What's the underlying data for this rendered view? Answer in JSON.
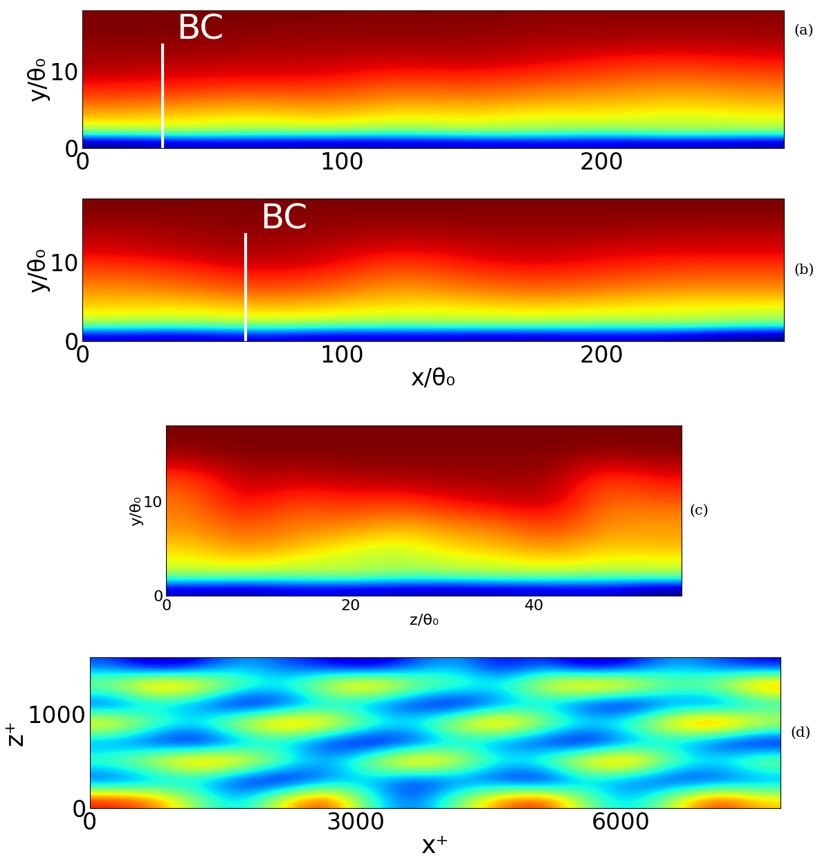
{
  "chart_data": [
    {
      "type": "heatmap",
      "panel": "(a)",
      "xlabel": null,
      "ylabel": "y/θ₀",
      "xlim": [
        0,
        270
      ],
      "ylim": [
        0,
        18
      ],
      "xticks": [
        0,
        100,
        200
      ],
      "yticks": [
        0,
        10
      ],
      "annotations": [
        {
          "text": "BC",
          "x": 31
        }
      ],
      "cells": [
        [
          0.15,
          0.2,
          0.2,
          0.18,
          0.2,
          0.2,
          0.22,
          0.2,
          0.2,
          0.18
        ],
        [
          0.6,
          0.62,
          0.58,
          0.6,
          0.55,
          0.6,
          0.58,
          0.55,
          0.6,
          0.58
        ],
        [
          0.7,
          0.68,
          0.66,
          0.7,
          0.65,
          0.68,
          0.64,
          0.66,
          0.62,
          0.65
        ],
        [
          0.76,
          0.74,
          0.72,
          0.75,
          0.7,
          0.72,
          0.7,
          0.7,
          0.68,
          0.7
        ],
        [
          0.82,
          0.8,
          0.78,
          0.8,
          0.76,
          0.78,
          0.75,
          0.74,
          0.72,
          0.74
        ],
        [
          0.86,
          0.85,
          0.84,
          0.84,
          0.8,
          0.82,
          0.8,
          0.78,
          0.76,
          0.78
        ],
        [
          0.9,
          0.88,
          0.88,
          0.88,
          0.85,
          0.86,
          0.84,
          0.82,
          0.8,
          0.82
        ],
        [
          0.92,
          0.91,
          0.9,
          0.9,
          0.88,
          0.9,
          0.88,
          0.85,
          0.84,
          0.86
        ],
        [
          0.93,
          0.93,
          0.92,
          0.92,
          0.91,
          0.92,
          0.9,
          0.89,
          0.88,
          0.89
        ],
        [
          0.94,
          0.94,
          0.93,
          0.93,
          0.93,
          0.93,
          0.92,
          0.92,
          0.91,
          0.92
        ],
        [
          0.95,
          0.95,
          0.94,
          0.94,
          0.94,
          0.94,
          0.93,
          0.93,
          0.93,
          0.93
        ],
        [
          0.95,
          0.95,
          0.95,
          0.95,
          0.94,
          0.95,
          0.94,
          0.94,
          0.94,
          0.94
        ]
      ]
    },
    {
      "type": "heatmap",
      "panel": "(b)",
      "xlabel": "x/θ₀",
      "ylabel": "y/θ₀",
      "xlim": [
        0,
        270
      ],
      "ylim": [
        0,
        18
      ],
      "xticks": [
        0,
        100,
        200
      ],
      "yticks": [
        0,
        10
      ],
      "annotations": [
        {
          "text": "BC",
          "x": 63
        }
      ],
      "cells": [
        [
          0.22,
          0.2,
          0.25,
          0.2,
          0.22,
          0.2,
          0.2,
          0.22,
          0.2,
          0.15
        ],
        [
          0.6,
          0.58,
          0.62,
          0.6,
          0.58,
          0.6,
          0.6,
          0.58,
          0.6,
          0.55
        ],
        [
          0.68,
          0.66,
          0.7,
          0.68,
          0.66,
          0.66,
          0.68,
          0.66,
          0.66,
          0.64
        ],
        [
          0.72,
          0.72,
          0.76,
          0.74,
          0.7,
          0.72,
          0.74,
          0.72,
          0.7,
          0.7
        ],
        [
          0.76,
          0.78,
          0.82,
          0.8,
          0.74,
          0.78,
          0.8,
          0.78,
          0.76,
          0.76
        ],
        [
          0.8,
          0.82,
          0.86,
          0.84,
          0.78,
          0.82,
          0.84,
          0.82,
          0.8,
          0.8
        ],
        [
          0.84,
          0.86,
          0.9,
          0.88,
          0.82,
          0.86,
          0.88,
          0.86,
          0.84,
          0.84
        ],
        [
          0.88,
          0.9,
          0.92,
          0.9,
          0.86,
          0.89,
          0.9,
          0.88,
          0.88,
          0.88
        ],
        [
          0.9,
          0.92,
          0.93,
          0.92,
          0.9,
          0.91,
          0.92,
          0.91,
          0.9,
          0.9
        ],
        [
          0.92,
          0.93,
          0.94,
          0.93,
          0.92,
          0.93,
          0.93,
          0.93,
          0.92,
          0.92
        ],
        [
          0.94,
          0.94,
          0.95,
          0.94,
          0.94,
          0.94,
          0.94,
          0.94,
          0.94,
          0.94
        ],
        [
          0.95,
          0.95,
          0.95,
          0.95,
          0.95,
          0.95,
          0.95,
          0.95,
          0.95,
          0.95
        ]
      ]
    },
    {
      "type": "heatmap",
      "panel": "(c)",
      "xlabel": "z/θ₀",
      "ylabel": "y/θ₀",
      "xlim": [
        0,
        56
      ],
      "ylim": [
        0,
        18
      ],
      "xticks": [
        0,
        20,
        40
      ],
      "yticks": [
        0,
        10
      ],
      "annotations": [],
      "cells": [
        [
          0.2,
          0.18,
          0.22,
          0.2,
          0.2,
          0.18,
          0.2,
          0.2,
          0.22,
          0.15
        ],
        [
          0.6,
          0.6,
          0.58,
          0.62,
          0.56,
          0.58,
          0.6,
          0.6,
          0.58,
          0.6
        ],
        [
          0.66,
          0.7,
          0.66,
          0.62,
          0.6,
          0.64,
          0.66,
          0.7,
          0.66,
          0.66
        ],
        [
          0.7,
          0.76,
          0.72,
          0.68,
          0.64,
          0.7,
          0.72,
          0.76,
          0.7,
          0.72
        ],
        [
          0.74,
          0.8,
          0.76,
          0.74,
          0.7,
          0.74,
          0.76,
          0.82,
          0.74,
          0.74
        ],
        [
          0.76,
          0.84,
          0.78,
          0.8,
          0.76,
          0.8,
          0.82,
          0.86,
          0.76,
          0.76
        ],
        [
          0.78,
          0.88,
          0.82,
          0.84,
          0.82,
          0.86,
          0.88,
          0.9,
          0.78,
          0.8
        ],
        [
          0.8,
          0.9,
          0.86,
          0.88,
          0.88,
          0.9,
          0.91,
          0.92,
          0.8,
          0.84
        ],
        [
          0.84,
          0.92,
          0.9,
          0.92,
          0.92,
          0.93,
          0.93,
          0.93,
          0.84,
          0.88
        ],
        [
          0.9,
          0.94,
          0.93,
          0.94,
          0.94,
          0.94,
          0.94,
          0.94,
          0.9,
          0.92
        ],
        [
          0.94,
          0.95,
          0.95,
          0.95,
          0.95,
          0.95,
          0.95,
          0.95,
          0.94,
          0.95
        ],
        [
          0.95,
          0.95,
          0.95,
          0.95,
          0.95,
          0.95,
          0.95,
          0.95,
          0.95,
          0.95
        ]
      ]
    },
    {
      "type": "heatmap",
      "panel": "(d)",
      "xlabel": "x⁺",
      "ylabel": "z⁺",
      "xlim": [
        0,
        7800
      ],
      "ylim": [
        0,
        1600
      ],
      "xticks": [
        0,
        3000,
        6000
      ],
      "yticks": [
        0,
        1000
      ],
      "annotations": [],
      "cells": [
        [
          0.8,
          0.75,
          0.6,
          0.5,
          0.7,
          0.8,
          0.55,
          0.45,
          0.6,
          0.75,
          0.8,
          0.6,
          0.5,
          0.65,
          0.8,
          0.7
        ],
        [
          0.4,
          0.45,
          0.5,
          0.4,
          0.35,
          0.45,
          0.5,
          0.4,
          0.45,
          0.4,
          0.35,
          0.5,
          0.45,
          0.4,
          0.4,
          0.45
        ],
        [
          0.6,
          0.7,
          0.8,
          0.75,
          0.6,
          0.5,
          0.65,
          0.8,
          0.7,
          0.55,
          0.6,
          0.75,
          0.8,
          0.6,
          0.55,
          0.65
        ],
        [
          0.45,
          0.4,
          0.35,
          0.45,
          0.5,
          0.4,
          0.35,
          0.4,
          0.5,
          0.45,
          0.4,
          0.35,
          0.45,
          0.5,
          0.4,
          0.35
        ],
        [
          0.75,
          0.6,
          0.55,
          0.7,
          0.8,
          0.75,
          0.6,
          0.55,
          0.7,
          0.8,
          0.65,
          0.55,
          0.6,
          0.75,
          0.85,
          0.7
        ],
        [
          0.4,
          0.5,
          0.45,
          0.35,
          0.4,
          0.5,
          0.45,
          0.4,
          0.35,
          0.45,
          0.5,
          0.4,
          0.35,
          0.45,
          0.4,
          0.5
        ],
        [
          0.65,
          0.8,
          0.75,
          0.6,
          0.55,
          0.7,
          0.8,
          0.65,
          0.6,
          0.55,
          0.7,
          0.8,
          0.75,
          0.6,
          0.65,
          0.8
        ],
        [
          0.45,
          0.35,
          0.4,
          0.5,
          0.45,
          0.4,
          0.35,
          0.45,
          0.5,
          0.4,
          0.45,
          0.35,
          0.4,
          0.5,
          0.45,
          0.4
        ]
      ]
    }
  ]
}
